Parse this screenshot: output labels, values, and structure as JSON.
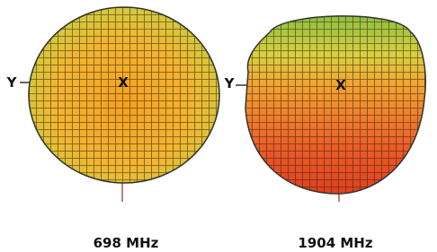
{
  "panels": [
    {
      "y_axis": "Y",
      "x_axis": "X",
      "caption": "698 MHz"
    },
    {
      "y_axis": "Y",
      "x_axis": "X",
      "caption": "1904 MHz"
    }
  ]
}
